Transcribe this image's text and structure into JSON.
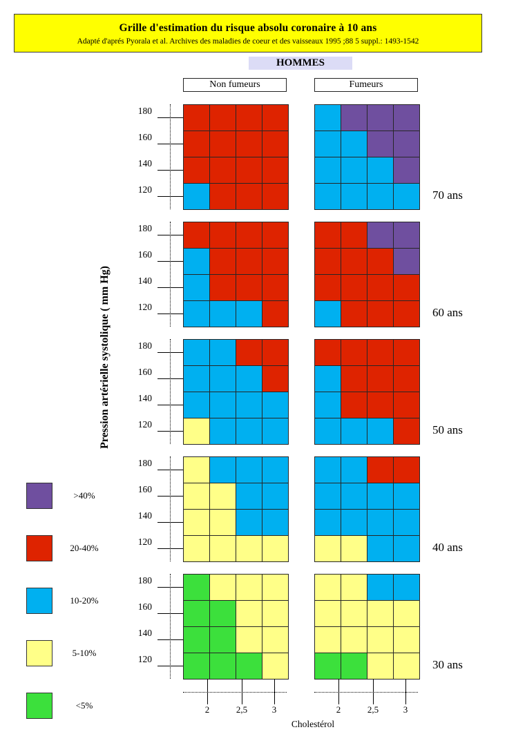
{
  "theme": {
    "title_background": "#ffff00",
    "population_background": "#dcdcf6"
  },
  "chart_data": {
    "type": "heatmap",
    "title": "Grille d'estimation du risque absolu coronaire à 10 ans",
    "subtitle": "Adapté d'aprés Pyorala et al. Archives des maladies de coeur et des vaisseaux 1995 ;88 5 suppl.: 1493-1542",
    "population": "HOMMES",
    "groups": [
      "Non fumeurs",
      "Fumeurs"
    ],
    "ylabel": "Pression artérielle systolique ( mm Hg)",
    "y_ticks": [
      "180",
      "160",
      "140",
      "120"
    ],
    "xlabel": "Cholestérol",
    "x_ticks": [
      "2",
      "2,5",
      "3"
    ],
    "grid": true,
    "legend": {
      "placement": "bottom-left",
      "categories": [
        {
          "label": ">40%",
          "color": "#6f4f9f"
        },
        {
          "label": "20-40%",
          "color": "#de2300"
        },
        {
          "label": "10-20%",
          "color": "#00b0f0"
        },
        {
          "label": "5-10%",
          "color": "#ffff88"
        },
        {
          "label": "<5%",
          "color": "#3ce03c"
        }
      ]
    },
    "panels": [
      {
        "age": "70 ans",
        "grids": [
          [
            [
              1,
              1,
              1,
              1
            ],
            [
              1,
              1,
              1,
              1
            ],
            [
              1,
              1,
              1,
              1
            ],
            [
              2,
              1,
              1,
              1
            ]
          ],
          [
            [
              2,
              0,
              0,
              0
            ],
            [
              2,
              2,
              0,
              0
            ],
            [
              2,
              2,
              2,
              0
            ],
            [
              2,
              2,
              2,
              2
            ]
          ]
        ]
      },
      {
        "age": "60 ans",
        "grids": [
          [
            [
              1,
              1,
              1,
              1
            ],
            [
              2,
              1,
              1,
              1
            ],
            [
              2,
              1,
              1,
              1
            ],
            [
              2,
              2,
              2,
              1
            ]
          ],
          [
            [
              1,
              1,
              0,
              0
            ],
            [
              1,
              1,
              1,
              0
            ],
            [
              1,
              1,
              1,
              1
            ],
            [
              2,
              1,
              1,
              1
            ]
          ]
        ]
      },
      {
        "age": "50 ans",
        "grids": [
          [
            [
              2,
              2,
              1,
              1
            ],
            [
              2,
              2,
              2,
              1
            ],
            [
              2,
              2,
              2,
              2
            ],
            [
              3,
              2,
              2,
              2
            ]
          ],
          [
            [
              1,
              1,
              1,
              1
            ],
            [
              2,
              1,
              1,
              1
            ],
            [
              2,
              1,
              1,
              1
            ],
            [
              2,
              2,
              2,
              1
            ]
          ]
        ]
      },
      {
        "age": "40 ans",
        "grids": [
          [
            [
              3,
              2,
              2,
              2
            ],
            [
              3,
              3,
              2,
              2
            ],
            [
              3,
              3,
              2,
              2
            ],
            [
              3,
              3,
              3,
              3
            ]
          ],
          [
            [
              2,
              2,
              1,
              1
            ],
            [
              2,
              2,
              2,
              2
            ],
            [
              2,
              2,
              2,
              2
            ],
            [
              3,
              3,
              2,
              2
            ]
          ]
        ]
      },
      {
        "age": "30 ans",
        "grids": [
          [
            [
              4,
              3,
              3,
              3
            ],
            [
              4,
              4,
              3,
              3
            ],
            [
              4,
              4,
              3,
              3
            ],
            [
              4,
              4,
              4,
              3
            ]
          ],
          [
            [
              3,
              3,
              2,
              2
            ],
            [
              3,
              3,
              3,
              3
            ],
            [
              3,
              3,
              3,
              3
            ],
            [
              4,
              4,
              3,
              3
            ]
          ]
        ]
      }
    ]
  }
}
